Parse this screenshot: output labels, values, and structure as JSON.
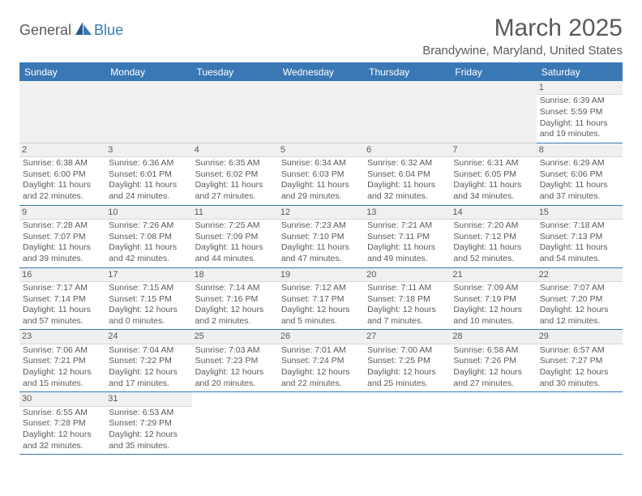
{
  "logo": {
    "part1": "General",
    "part2": "Blue"
  },
  "title": "March 2025",
  "location": "Brandywine, Maryland, United States",
  "colors": {
    "header_bg": "#3a78b5",
    "header_text": "#ffffff",
    "text": "#5a5a5a",
    "cell_header_bg": "#f0f0f0",
    "border": "#3a78b5"
  },
  "weekdays": [
    "Sunday",
    "Monday",
    "Tuesday",
    "Wednesday",
    "Thursday",
    "Friday",
    "Saturday"
  ],
  "days": {
    "1": {
      "sunrise": "6:39 AM",
      "sunset": "5:59 PM",
      "daylight": "11 hours and 19 minutes."
    },
    "2": {
      "sunrise": "6:38 AM",
      "sunset": "6:00 PM",
      "daylight": "11 hours and 22 minutes."
    },
    "3": {
      "sunrise": "6:36 AM",
      "sunset": "6:01 PM",
      "daylight": "11 hours and 24 minutes."
    },
    "4": {
      "sunrise": "6:35 AM",
      "sunset": "6:02 PM",
      "daylight": "11 hours and 27 minutes."
    },
    "5": {
      "sunrise": "6:34 AM",
      "sunset": "6:03 PM",
      "daylight": "11 hours and 29 minutes."
    },
    "6": {
      "sunrise": "6:32 AM",
      "sunset": "6:04 PM",
      "daylight": "11 hours and 32 minutes."
    },
    "7": {
      "sunrise": "6:31 AM",
      "sunset": "6:05 PM",
      "daylight": "11 hours and 34 minutes."
    },
    "8": {
      "sunrise": "6:29 AM",
      "sunset": "6:06 PM",
      "daylight": "11 hours and 37 minutes."
    },
    "9": {
      "sunrise": "7:28 AM",
      "sunset": "7:07 PM",
      "daylight": "11 hours and 39 minutes."
    },
    "10": {
      "sunrise": "7:26 AM",
      "sunset": "7:08 PM",
      "daylight": "11 hours and 42 minutes."
    },
    "11": {
      "sunrise": "7:25 AM",
      "sunset": "7:09 PM",
      "daylight": "11 hours and 44 minutes."
    },
    "12": {
      "sunrise": "7:23 AM",
      "sunset": "7:10 PM",
      "daylight": "11 hours and 47 minutes."
    },
    "13": {
      "sunrise": "7:21 AM",
      "sunset": "7:11 PM",
      "daylight": "11 hours and 49 minutes."
    },
    "14": {
      "sunrise": "7:20 AM",
      "sunset": "7:12 PM",
      "daylight": "11 hours and 52 minutes."
    },
    "15": {
      "sunrise": "7:18 AM",
      "sunset": "7:13 PM",
      "daylight": "11 hours and 54 minutes."
    },
    "16": {
      "sunrise": "7:17 AM",
      "sunset": "7:14 PM",
      "daylight": "11 hours and 57 minutes."
    },
    "17": {
      "sunrise": "7:15 AM",
      "sunset": "7:15 PM",
      "daylight": "12 hours and 0 minutes."
    },
    "18": {
      "sunrise": "7:14 AM",
      "sunset": "7:16 PM",
      "daylight": "12 hours and 2 minutes."
    },
    "19": {
      "sunrise": "7:12 AM",
      "sunset": "7:17 PM",
      "daylight": "12 hours and 5 minutes."
    },
    "20": {
      "sunrise": "7:11 AM",
      "sunset": "7:18 PM",
      "daylight": "12 hours and 7 minutes."
    },
    "21": {
      "sunrise": "7:09 AM",
      "sunset": "7:19 PM",
      "daylight": "12 hours and 10 minutes."
    },
    "22": {
      "sunrise": "7:07 AM",
      "sunset": "7:20 PM",
      "daylight": "12 hours and 12 minutes."
    },
    "23": {
      "sunrise": "7:06 AM",
      "sunset": "7:21 PM",
      "daylight": "12 hours and 15 minutes."
    },
    "24": {
      "sunrise": "7:04 AM",
      "sunset": "7:22 PM",
      "daylight": "12 hours and 17 minutes."
    },
    "25": {
      "sunrise": "7:03 AM",
      "sunset": "7:23 PM",
      "daylight": "12 hours and 20 minutes."
    },
    "26": {
      "sunrise": "7:01 AM",
      "sunset": "7:24 PM",
      "daylight": "12 hours and 22 minutes."
    },
    "27": {
      "sunrise": "7:00 AM",
      "sunset": "7:25 PM",
      "daylight": "12 hours and 25 minutes."
    },
    "28": {
      "sunrise": "6:58 AM",
      "sunset": "7:26 PM",
      "daylight": "12 hours and 27 minutes."
    },
    "29": {
      "sunrise": "6:57 AM",
      "sunset": "7:27 PM",
      "daylight": "12 hours and 30 minutes."
    },
    "30": {
      "sunrise": "6:55 AM",
      "sunset": "7:28 PM",
      "daylight": "12 hours and 32 minutes."
    },
    "31": {
      "sunrise": "6:53 AM",
      "sunset": "7:29 PM",
      "daylight": "12 hours and 35 minutes."
    }
  },
  "labels": {
    "sunrise": "Sunrise: ",
    "sunset": "Sunset: ",
    "daylight": "Daylight: "
  },
  "grid": [
    [
      null,
      null,
      null,
      null,
      null,
      null,
      "1"
    ],
    [
      "2",
      "3",
      "4",
      "5",
      "6",
      "7",
      "8"
    ],
    [
      "9",
      "10",
      "11",
      "12",
      "13",
      "14",
      "15"
    ],
    [
      "16",
      "17",
      "18",
      "19",
      "20",
      "21",
      "22"
    ],
    [
      "23",
      "24",
      "25",
      "26",
      "27",
      "28",
      "29"
    ],
    [
      "30",
      "31",
      null,
      null,
      null,
      null,
      null
    ]
  ]
}
